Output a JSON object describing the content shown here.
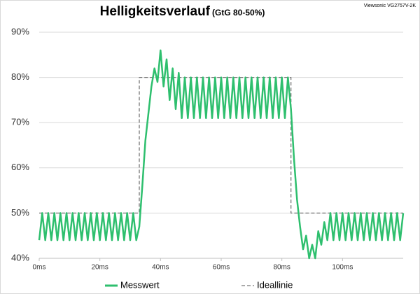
{
  "chart_data": {
    "type": "line",
    "title": "Helligkeitsverlauf",
    "subtitle": "(GtG 80-50%)",
    "annotation": "Viewsonic VG2757V-2K",
    "x": [
      0,
      1,
      2,
      3,
      4,
      5,
      6,
      7,
      8,
      9,
      10,
      11,
      12,
      13,
      14,
      15,
      16,
      17,
      18,
      19,
      20,
      21,
      22,
      23,
      24,
      25,
      26,
      27,
      28,
      29,
      30,
      31,
      32,
      33,
      34,
      35,
      36,
      37,
      38,
      39,
      40,
      41,
      42,
      43,
      44,
      45,
      46,
      47,
      48,
      49,
      50,
      51,
      52,
      53,
      54,
      55,
      56,
      57,
      58,
      59,
      60,
      61,
      62,
      63,
      64,
      65,
      66,
      67,
      68,
      69,
      70,
      71,
      72,
      73,
      74,
      75,
      76,
      77,
      78,
      79,
      80,
      81,
      82,
      83,
      84,
      85,
      86,
      87,
      88,
      89,
      90,
      91,
      92,
      93,
      94,
      95,
      96,
      97,
      98,
      99,
      100,
      101,
      102,
      103,
      104,
      105,
      106,
      107,
      108,
      109,
      110,
      111,
      112,
      113,
      114,
      115,
      116,
      117,
      118,
      119,
      120
    ],
    "series": [
      {
        "name": "Messwert",
        "color": "#2ebf6e",
        "values": [
          44,
          50,
          44,
          50,
          44,
          50,
          44,
          50,
          44,
          50,
          44,
          50,
          44,
          50,
          44,
          50,
          44,
          50,
          44,
          50,
          44,
          50,
          44,
          50,
          44,
          50,
          44,
          50,
          44,
          50,
          44,
          50,
          44,
          47,
          56,
          66,
          72,
          78,
          82,
          79,
          86,
          78,
          84,
          75,
          82,
          73,
          81,
          71,
          80,
          71,
          80,
          71,
          80,
          71,
          80,
          71,
          80,
          71,
          80,
          71,
          80,
          71,
          80,
          71,
          80,
          71,
          80,
          71,
          80,
          71,
          80,
          71,
          80,
          71,
          80,
          71,
          80,
          71,
          80,
          71,
          80,
          71,
          80,
          73,
          62,
          53,
          47,
          42,
          45,
          40,
          43,
          40,
          46,
          43,
          48,
          44,
          50,
          44,
          50,
          44,
          50,
          44,
          50,
          44,
          50,
          44,
          50,
          44,
          50,
          44,
          50,
          44,
          50,
          44,
          50,
          44,
          50,
          44,
          50,
          44,
          50
        ]
      },
      {
        "name": "Ideallinie",
        "color": "#777777",
        "dashed": true,
        "x": [
          0,
          33,
          33,
          83,
          83,
          120
        ],
        "values": [
          50,
          50,
          80,
          80,
          50,
          50
        ]
      }
    ],
    "xlim": [
      0,
      120
    ],
    "xticks": [
      {
        "value": 0,
        "label": "0ms"
      },
      {
        "value": 20,
        "label": "20ms"
      },
      {
        "value": 40,
        "label": "40ms"
      },
      {
        "value": 60,
        "label": "60ms"
      },
      {
        "value": 80,
        "label": "80ms"
      },
      {
        "value": 100,
        "label": "100ms"
      }
    ],
    "ylim": [
      40,
      90
    ],
    "yticks": [
      {
        "value": 40,
        "label": "40%"
      },
      {
        "value": 50,
        "label": "50%"
      },
      {
        "value": 60,
        "label": "60%"
      },
      {
        "value": 70,
        "label": "70%"
      },
      {
        "value": 80,
        "label": "80%"
      },
      {
        "value": 90,
        "label": "90%"
      }
    ],
    "grid": true,
    "legend": "bottom"
  }
}
